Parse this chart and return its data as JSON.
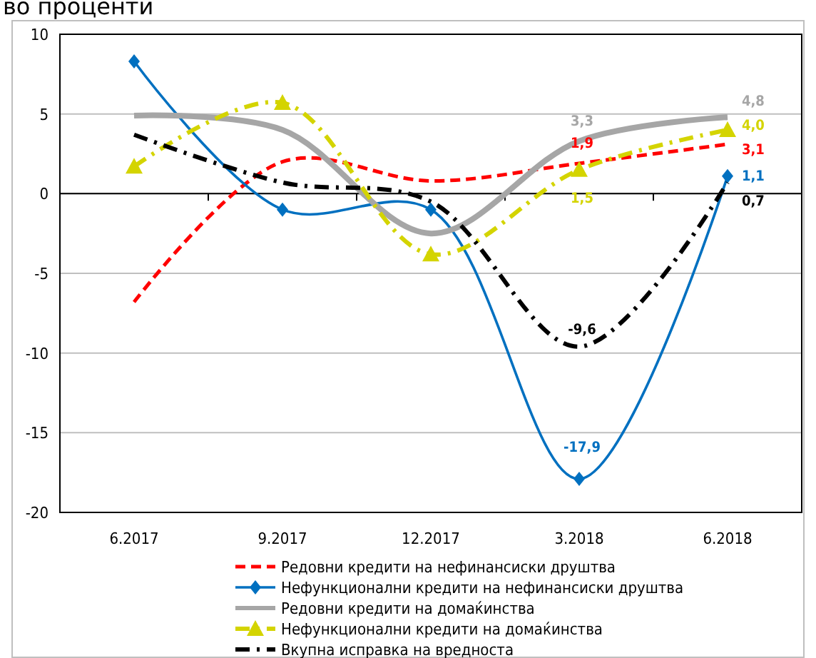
{
  "chart_data": {
    "type": "line",
    "title": "во проценти",
    "categories": [
      "6.2017",
      "9.2017",
      "12.2017",
      "3.2018",
      "6.2018"
    ],
    "series": [
      {
        "name": "Редовни кредити на нефинансиски друштва",
        "color": "#ff0000",
        "values": [
          -6.8,
          2.0,
          0.8,
          1.9,
          3.1
        ],
        "line_style": "dashed",
        "marker": "none",
        "value_labels": [
          null,
          null,
          null,
          "1,9",
          "3,1"
        ]
      },
      {
        "name": "Нефункционални кредити на нефинансиски друштва",
        "color": "#0070c0",
        "values": [
          8.3,
          -1.0,
          -1.0,
          -17.9,
          1.1
        ],
        "line_style": "solid",
        "marker": "diamond",
        "value_labels": [
          null,
          null,
          null,
          "-17,9",
          "1,1"
        ]
      },
      {
        "name": "Редовни кредити на домаќинства",
        "color": "#a6a6a6",
        "values": [
          4.9,
          4.0,
          -2.5,
          3.3,
          4.8
        ],
        "line_style": "solid",
        "marker": "none",
        "value_labels": [
          null,
          null,
          null,
          "3,3",
          "4,8"
        ]
      },
      {
        "name": "Нефункционални кредити на домаќинства",
        "color": "#d4d400",
        "values": [
          1.7,
          5.7,
          -3.8,
          1.5,
          4.0
        ],
        "line_style": "dashdot",
        "marker": "triangle",
        "value_labels": [
          null,
          null,
          null,
          "1,5",
          "4,0"
        ]
      },
      {
        "name": "Вкупна исправка на вредноста",
        "color": "#000000",
        "values": [
          3.7,
          0.7,
          -0.5,
          -9.6,
          0.7
        ],
        "line_style": "dashdot",
        "marker": "none",
        "value_labels": [
          null,
          null,
          null,
          "-9,6",
          "0,7"
        ]
      }
    ],
    "ylim": [
      -20,
      10
    ],
    "yticks": [
      -20,
      -15,
      -10,
      -5,
      0,
      5,
      10
    ],
    "grid": "y",
    "legend": "bottom"
  }
}
